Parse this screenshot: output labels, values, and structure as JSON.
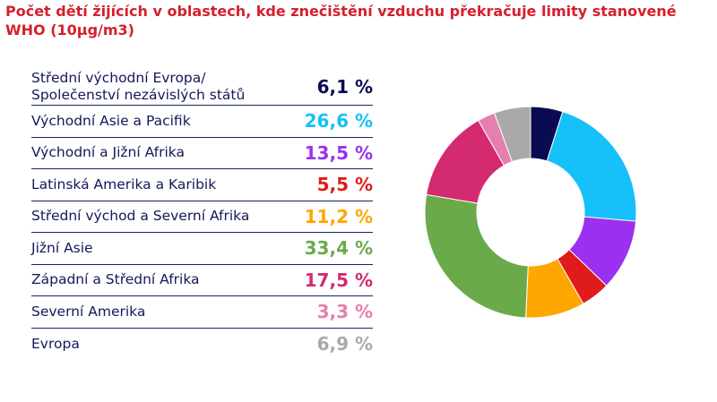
{
  "chart_data": {
    "type": "pie",
    "title": "Počet dětí žijících v oblastech, kde znečištění vzduchu překračuje limity stanovené WHO (10µg/m3)",
    "categories": [
      "Střední východní Evropa/\nSpolečenství nezávislých států",
      "Východní Asie a Pacifik",
      "Východní a Jižní Afrika",
      "Latinská Amerika a Karibik",
      "Střední východ a Severní Afrika",
      "Jižní Asie",
      "Západní a Střední Afrika",
      "Severní Amerika",
      "Evropa"
    ],
    "values": [
      6.1,
      26.6,
      13.5,
      5.5,
      11.2,
      33.4,
      17.5,
      3.3,
      6.9
    ],
    "value_labels": [
      "6,1 %",
      "26,6 %",
      "13,5 %",
      "5,5 %",
      "11,2 %",
      "33,4 %",
      "17,5 %",
      "3,3 %",
      "6,9 %"
    ],
    "colors": [
      "#0b0b52",
      "#16c0f8",
      "#9b30f0",
      "#e01b1b",
      "#ffa600",
      "#6aaa4a",
      "#d42a70",
      "#e57fb0",
      "#a9a9a9"
    ]
  }
}
